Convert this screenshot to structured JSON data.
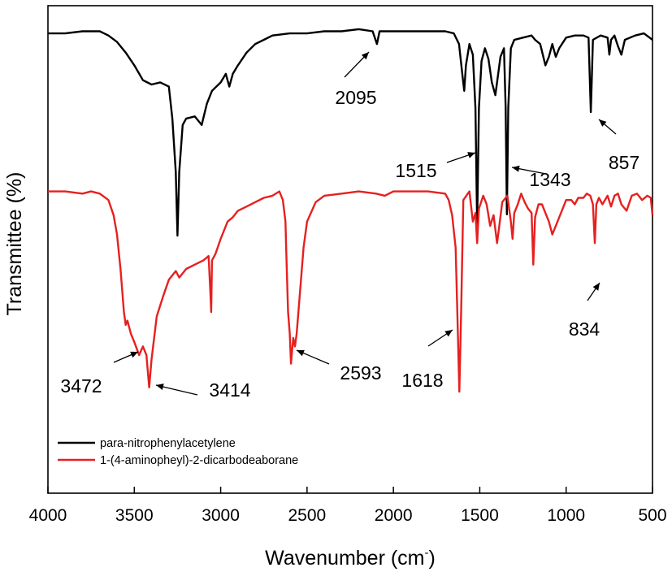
{
  "chart_data": {
    "type": "line",
    "xlabel": "Wavenumber (cm",
    "xlabel_sup": "-",
    "xlabel_close": ")",
    "ylabel": "Transmittee (%)",
    "xlim": [
      4000,
      500
    ],
    "x_reversed": true,
    "yticks_shown": false,
    "grid": false,
    "legend_position": "bottom-left",
    "x_ticks": [
      4000,
      3500,
      3000,
      2500,
      2000,
      1500,
      1000,
      500
    ],
    "series": [
      {
        "name": "para-nitrophenylacetylene",
        "color": "#000000",
        "points": [
          [
            4000,
            95
          ],
          [
            3900,
            95
          ],
          [
            3800,
            96
          ],
          [
            3700,
            96
          ],
          [
            3650,
            94
          ],
          [
            3600,
            91
          ],
          [
            3550,
            86
          ],
          [
            3500,
            80
          ],
          [
            3450,
            73
          ],
          [
            3400,
            71
          ],
          [
            3350,
            72
          ],
          [
            3300,
            70
          ],
          [
            3280,
            55
          ],
          [
            3260,
            30
          ],
          [
            3250,
            0
          ],
          [
            3240,
            30
          ],
          [
            3220,
            52
          ],
          [
            3200,
            55
          ],
          [
            3150,
            56
          ],
          [
            3110,
            52
          ],
          [
            3080,
            62
          ],
          [
            3050,
            68
          ],
          [
            3000,
            72
          ],
          [
            2970,
            76
          ],
          [
            2950,
            70
          ],
          [
            2930,
            76
          ],
          [
            2900,
            80
          ],
          [
            2850,
            86
          ],
          [
            2800,
            90
          ],
          [
            2750,
            92
          ],
          [
            2700,
            94
          ],
          [
            2600,
            95
          ],
          [
            2500,
            95
          ],
          [
            2400,
            96
          ],
          [
            2300,
            96
          ],
          [
            2200,
            97
          ],
          [
            2120,
            96
          ],
          [
            2095,
            90
          ],
          [
            2080,
            96
          ],
          [
            2000,
            96
          ],
          [
            1900,
            96
          ],
          [
            1800,
            96
          ],
          [
            1700,
            96
          ],
          [
            1650,
            95
          ],
          [
            1620,
            90
          ],
          [
            1600,
            75
          ],
          [
            1590,
            68
          ],
          [
            1580,
            80
          ],
          [
            1560,
            90
          ],
          [
            1540,
            85
          ],
          [
            1525,
            60
          ],
          [
            1515,
            5
          ],
          [
            1505,
            60
          ],
          [
            1490,
            82
          ],
          [
            1470,
            88
          ],
          [
            1450,
            83
          ],
          [
            1430,
            72
          ],
          [
            1410,
            66
          ],
          [
            1400,
            72
          ],
          [
            1380,
            84
          ],
          [
            1360,
            88
          ],
          [
            1350,
            60
          ],
          [
            1343,
            10
          ],
          [
            1335,
            60
          ],
          [
            1320,
            88
          ],
          [
            1300,
            92
          ],
          [
            1250,
            93
          ],
          [
            1200,
            94
          ],
          [
            1180,
            92
          ],
          [
            1150,
            90
          ],
          [
            1120,
            80
          ],
          [
            1100,
            84
          ],
          [
            1080,
            90
          ],
          [
            1060,
            84
          ],
          [
            1040,
            88
          ],
          [
            1000,
            93
          ],
          [
            950,
            94
          ],
          [
            900,
            94
          ],
          [
            870,
            93
          ],
          [
            857,
            58
          ],
          [
            845,
            92
          ],
          [
            800,
            94
          ],
          [
            760,
            93
          ],
          [
            750,
            85
          ],
          [
            740,
            92
          ],
          [
            720,
            94
          ],
          [
            700,
            89
          ],
          [
            680,
            85
          ],
          [
            660,
            92
          ],
          [
            600,
            94
          ],
          [
            550,
            95
          ],
          [
            500,
            92
          ]
        ]
      },
      {
        "name": "1-(4-aminopheyl)-2-dicarbodeaborane",
        "color": "#e62020",
        "points": [
          [
            4000,
            96
          ],
          [
            3900,
            96
          ],
          [
            3800,
            95
          ],
          [
            3750,
            96
          ],
          [
            3700,
            95
          ],
          [
            3650,
            92
          ],
          [
            3620,
            85
          ],
          [
            3600,
            76
          ],
          [
            3580,
            60
          ],
          [
            3560,
            40
          ],
          [
            3550,
            34
          ],
          [
            3540,
            36
          ],
          [
            3520,
            30
          ],
          [
            3500,
            26
          ],
          [
            3472,
            20
          ],
          [
            3450,
            24
          ],
          [
            3430,
            20
          ],
          [
            3414,
            5
          ],
          [
            3400,
            18
          ],
          [
            3370,
            38
          ],
          [
            3330,
            48
          ],
          [
            3300,
            55
          ],
          [
            3260,
            59
          ],
          [
            3240,
            56
          ],
          [
            3200,
            60
          ],
          [
            3150,
            62
          ],
          [
            3100,
            64
          ],
          [
            3070,
            66
          ],
          [
            3060,
            50
          ],
          [
            3055,
            40
          ],
          [
            3050,
            64
          ],
          [
            3030,
            67
          ],
          [
            3000,
            74
          ],
          [
            2960,
            82
          ],
          [
            2930,
            84
          ],
          [
            2900,
            87
          ],
          [
            2850,
            89
          ],
          [
            2800,
            91
          ],
          [
            2750,
            93
          ],
          [
            2700,
            94
          ],
          [
            2660,
            96
          ],
          [
            2640,
            92
          ],
          [
            2625,
            82
          ],
          [
            2620,
            68
          ],
          [
            2610,
            40
          ],
          [
            2600,
            30
          ],
          [
            2593,
            16
          ],
          [
            2580,
            28
          ],
          [
            2570,
            24
          ],
          [
            2560,
            30
          ],
          [
            2545,
            45
          ],
          [
            2520,
            70
          ],
          [
            2500,
            82
          ],
          [
            2450,
            91
          ],
          [
            2400,
            94
          ],
          [
            2300,
            95
          ],
          [
            2200,
            96
          ],
          [
            2100,
            95
          ],
          [
            2050,
            94
          ],
          [
            2000,
            96
          ],
          [
            1900,
            96
          ],
          [
            1800,
            96
          ],
          [
            1700,
            95
          ],
          [
            1680,
            92
          ],
          [
            1660,
            85
          ],
          [
            1640,
            70
          ],
          [
            1630,
            40
          ],
          [
            1618,
            3
          ],
          [
            1608,
            40
          ],
          [
            1595,
            92
          ],
          [
            1560,
            96
          ],
          [
            1540,
            82
          ],
          [
            1525,
            86
          ],
          [
            1515,
            72
          ],
          [
            1505,
            88
          ],
          [
            1480,
            94
          ],
          [
            1460,
            90
          ],
          [
            1440,
            80
          ],
          [
            1420,
            85
          ],
          [
            1400,
            72
          ],
          [
            1390,
            78
          ],
          [
            1370,
            91
          ],
          [
            1340,
            94
          ],
          [
            1320,
            82
          ],
          [
            1310,
            74
          ],
          [
            1300,
            86
          ],
          [
            1280,
            90
          ],
          [
            1260,
            95
          ],
          [
            1240,
            91
          ],
          [
            1220,
            88
          ],
          [
            1200,
            86
          ],
          [
            1190,
            62
          ],
          [
            1180,
            84
          ],
          [
            1160,
            90
          ],
          [
            1140,
            90
          ],
          [
            1120,
            86
          ],
          [
            1100,
            82
          ],
          [
            1080,
            76
          ],
          [
            1060,
            80
          ],
          [
            1040,
            84
          ],
          [
            1020,
            88
          ],
          [
            1000,
            92
          ],
          [
            970,
            92
          ],
          [
            950,
            90
          ],
          [
            930,
            93
          ],
          [
            900,
            93
          ],
          [
            880,
            95
          ],
          [
            860,
            94
          ],
          [
            845,
            90
          ],
          [
            834,
            72
          ],
          [
            825,
            90
          ],
          [
            810,
            93
          ],
          [
            790,
            90
          ],
          [
            760,
            94
          ],
          [
            740,
            89
          ],
          [
            720,
            94
          ],
          [
            700,
            95
          ],
          [
            680,
            90
          ],
          [
            650,
            87
          ],
          [
            620,
            94
          ],
          [
            590,
            95
          ],
          [
            560,
            92
          ],
          [
            530,
            94
          ],
          [
            510,
            93
          ],
          [
            500,
            85
          ]
        ]
      }
    ],
    "annotations": [
      {
        "text": "2095"
      },
      {
        "text": "1515"
      },
      {
        "text": "1343"
      },
      {
        "text": "857"
      },
      {
        "text": "3472"
      },
      {
        "text": "3414"
      },
      {
        "text": "2593"
      },
      {
        "text": "1618"
      },
      {
        "text": "834"
      }
    ]
  }
}
